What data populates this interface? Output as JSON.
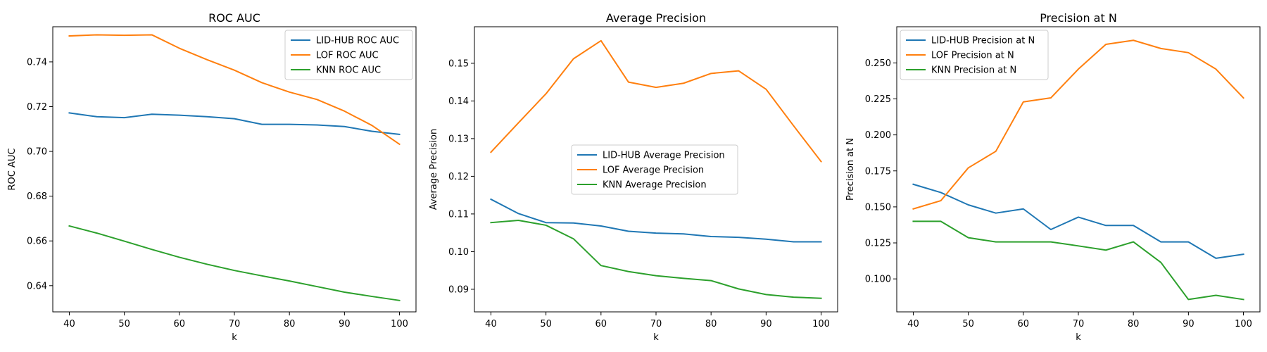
{
  "chart_data": [
    {
      "type": "line",
      "title": "ROC AUC",
      "xlabel": "k",
      "ylabel": "ROC AUC",
      "x": [
        40,
        45,
        50,
        55,
        60,
        65,
        70,
        75,
        80,
        85,
        90,
        95,
        100
      ],
      "xlim": [
        37,
        103
      ],
      "ylim": [
        0.6283,
        0.7557
      ],
      "xticks": [
        40,
        50,
        60,
        70,
        80,
        90,
        100
      ],
      "yticks": [
        0.64,
        0.66,
        0.68,
        0.7,
        0.72,
        0.74
      ],
      "ytick_decimals": 2,
      "legend_loc": "upper-right",
      "series": [
        {
          "name": "LID-HUB ROC AUC",
          "color": "#1f77b4",
          "values": [
            0.7172,
            0.7155,
            0.7151,
            0.7166,
            0.7162,
            0.7155,
            0.7146,
            0.7121,
            0.7121,
            0.7118,
            0.7111,
            0.709,
            0.7076
          ]
        },
        {
          "name": "LOF ROC AUC",
          "color": "#ff7f0e",
          "values": [
            0.7516,
            0.7521,
            0.7519,
            0.7521,
            0.7461,
            0.741,
            0.7363,
            0.7307,
            0.7265,
            0.7232,
            0.718,
            0.7116,
            0.7032
          ]
        },
        {
          "name": "KNN ROC AUC",
          "color": "#2ca02c",
          "values": [
            0.6667,
            0.6635,
            0.6599,
            0.6562,
            0.6527,
            0.6496,
            0.6468,
            0.6444,
            0.6421,
            0.6396,
            0.6371,
            0.6352,
            0.6334
          ]
        }
      ]
    },
    {
      "type": "line",
      "title": "Average Precision",
      "xlabel": "k",
      "ylabel": "Average Precision",
      "x": [
        40,
        45,
        50,
        55,
        60,
        65,
        70,
        75,
        80,
        85,
        90,
        95,
        100
      ],
      "xlim": [
        37,
        103
      ],
      "ylim": [
        0.084,
        0.1597
      ],
      "xticks": [
        40,
        50,
        60,
        70,
        80,
        90,
        100
      ],
      "yticks": [
        0.09,
        0.1,
        0.11,
        0.12,
        0.13,
        0.14,
        0.15
      ],
      "ytick_decimals": 2,
      "legend_loc": "center",
      "series": [
        {
          "name": "LID-HUB Average Precision",
          "color": "#1f77b4",
          "values": [
            0.1139,
            0.1101,
            0.1077,
            0.1076,
            0.1068,
            0.1054,
            0.1049,
            0.1047,
            0.104,
            0.1038,
            0.1033,
            0.1026,
            0.1026
          ]
        },
        {
          "name": "LOF Average Precision",
          "color": "#ff7f0e",
          "values": [
            0.1264,
            0.1342,
            0.1419,
            0.1512,
            0.156,
            0.145,
            0.1436,
            0.1447,
            0.1473,
            0.148,
            0.1431,
            0.1334,
            0.1239
          ]
        },
        {
          "name": "KNN Average Precision",
          "color": "#2ca02c",
          "values": [
            0.1077,
            0.1083,
            0.107,
            0.1034,
            0.0963,
            0.0947,
            0.0936,
            0.0929,
            0.0923,
            0.0901,
            0.0886,
            0.0879,
            0.0876
          ]
        }
      ]
    },
    {
      "type": "line",
      "title": "Precision at N",
      "xlabel": "k",
      "ylabel": "Precision at N",
      "x": [
        40,
        45,
        50,
        55,
        60,
        65,
        70,
        75,
        80,
        85,
        90,
        95,
        100
      ],
      "xlim": [
        37,
        103
      ],
      "ylim": [
        0.0771,
        0.2751
      ],
      "xticks": [
        40,
        50,
        60,
        70,
        80,
        90,
        100
      ],
      "yticks": [
        0.1,
        0.125,
        0.15,
        0.175,
        0.2,
        0.225,
        0.25
      ],
      "ytick_decimals": 3,
      "legend_loc": "upper-left",
      "series": [
        {
          "name": "LID-HUB Precision at N",
          "color": "#1f77b4",
          "values": [
            0.1657,
            0.16,
            0.1514,
            0.1457,
            0.1486,
            0.1343,
            0.1429,
            0.1371,
            0.1371,
            0.1257,
            0.1257,
            0.1143,
            0.1171
          ]
        },
        {
          "name": "LOF Precision at N",
          "color": "#ff7f0e",
          "values": [
            0.1486,
            0.1543,
            0.1771,
            0.1886,
            0.2229,
            0.2257,
            0.2457,
            0.2629,
            0.2657,
            0.26,
            0.2571,
            0.2457,
            0.2257
          ]
        },
        {
          "name": "KNN Precision at N",
          "color": "#2ca02c",
          "values": [
            0.14,
            0.14,
            0.1286,
            0.1257,
            0.1257,
            0.1257,
            0.1229,
            0.12,
            0.1257,
            0.1114,
            0.0857,
            0.0886,
            0.0857
          ]
        }
      ]
    }
  ]
}
